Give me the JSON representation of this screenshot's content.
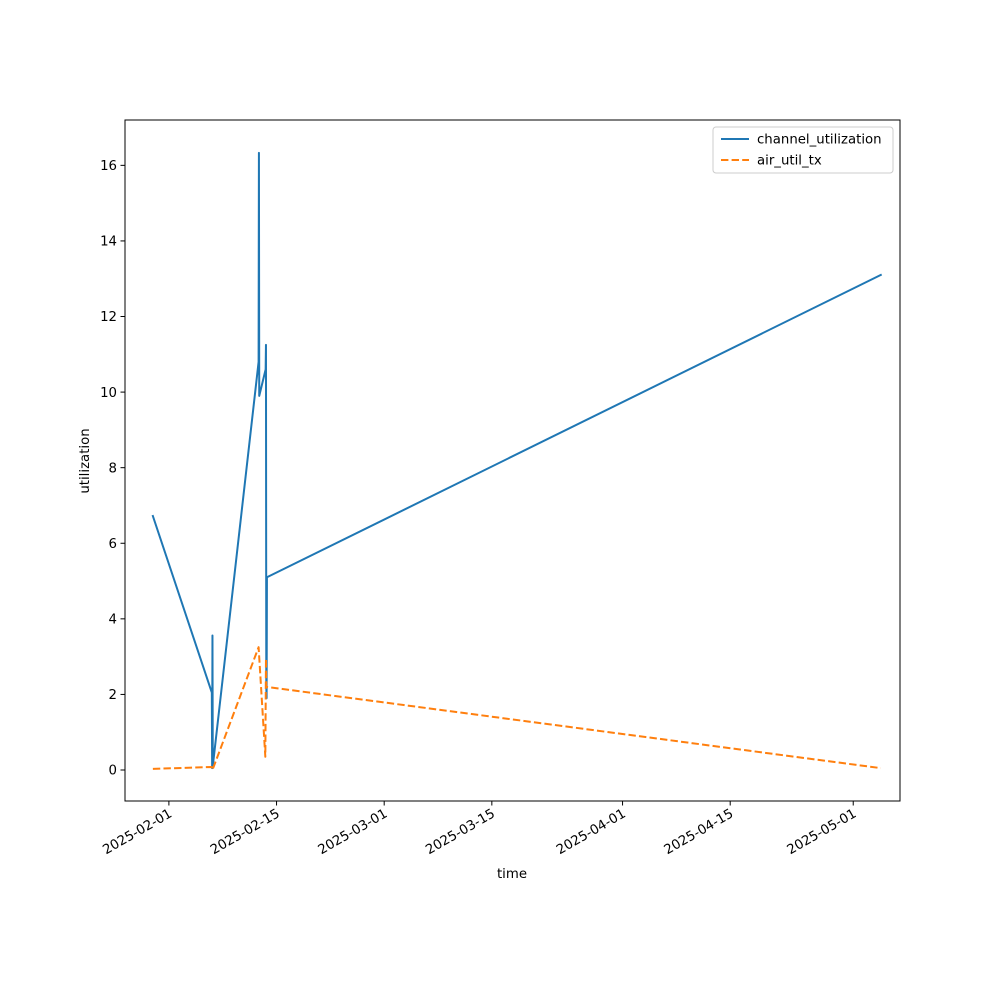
{
  "chart_data": {
    "type": "line",
    "title": "",
    "xlabel": "time",
    "ylabel": "utilization",
    "x_type": "date",
    "xlim": [
      "2025-01-26T07:00",
      "2025-05-07T02:00"
    ],
    "ylim": [
      -0.82,
      17.2
    ],
    "x_ticks": [
      {
        "value": "2025-02-01",
        "label": "2025-02-01"
      },
      {
        "value": "2025-02-15",
        "label": "2025-02-15"
      },
      {
        "value": "2025-03-01",
        "label": "2025-03-01"
      },
      {
        "value": "2025-03-15",
        "label": "2025-03-15"
      },
      {
        "value": "2025-04-01",
        "label": "2025-04-01"
      },
      {
        "value": "2025-04-15",
        "label": "2025-04-15"
      },
      {
        "value": "2025-05-01",
        "label": "2025-05-01"
      }
    ],
    "y_ticks": [
      0,
      2,
      4,
      6,
      8,
      10,
      12,
      14,
      16
    ],
    "grid": false,
    "legend_position": "upper right",
    "series": [
      {
        "name": "channel_utilization",
        "color": "#1f77b4",
        "style": "solid",
        "points": [
          {
            "x": "2025-01-29T22:00",
            "y": 6.72
          },
          {
            "x": "2025-02-06T14:00",
            "y": 2.05
          },
          {
            "x": "2025-02-06T15:00",
            "y": 0.05
          },
          {
            "x": "2025-02-06T16:00",
            "y": 3.56
          },
          {
            "x": "2025-02-06T17:00",
            "y": 0.1
          },
          {
            "x": "2025-02-12T16:00",
            "y": 10.8
          },
          {
            "x": "2025-02-12T17:00",
            "y": 16.33
          },
          {
            "x": "2025-02-12T18:00",
            "y": 9.9
          },
          {
            "x": "2025-02-13T14:00",
            "y": 10.6
          },
          {
            "x": "2025-02-13T15:00",
            "y": 11.25
          },
          {
            "x": "2025-02-13T16:00",
            "y": 2.2
          },
          {
            "x": "2025-02-13T17:00",
            "y": 1.9
          },
          {
            "x": "2025-02-13T18:00",
            "y": 5.1
          },
          {
            "x": "2025-05-04T14:00",
            "y": 13.1
          }
        ]
      },
      {
        "name": "air_util_tx",
        "color": "#ff7f0e",
        "style": "dashed",
        "points": [
          {
            "x": "2025-01-29T22:00",
            "y": 0.03
          },
          {
            "x": "2025-02-06T14:00",
            "y": 0.08
          },
          {
            "x": "2025-02-06T16:00",
            "y": 0.0
          },
          {
            "x": "2025-02-12T16:00",
            "y": 3.25
          },
          {
            "x": "2025-02-13T13:00",
            "y": 0.35
          },
          {
            "x": "2025-02-13T15:00",
            "y": 2.95
          },
          {
            "x": "2025-02-13T16:00",
            "y": 2.2
          },
          {
            "x": "2025-05-04T14:00",
            "y": 0.05
          }
        ]
      }
    ]
  }
}
